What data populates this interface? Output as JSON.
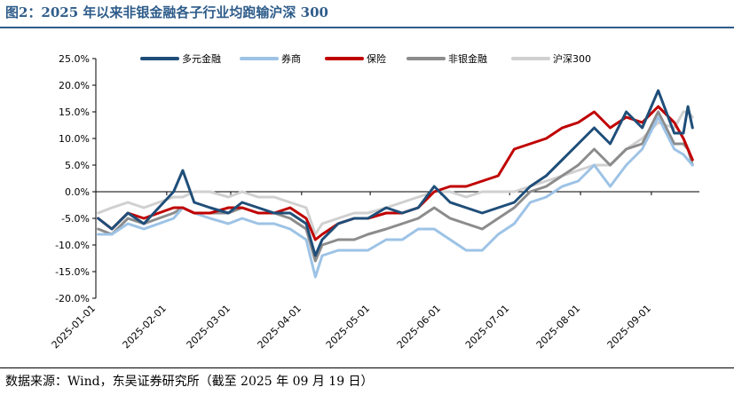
{
  "page": {
    "title": "图2：2025 年以来非银金融各子行业均跑输沪深 300",
    "source": "数据来源：Wind，东吴证券研究所（截至 2025 年 09 月 19 日）"
  },
  "colors": {
    "title": "#2E5C8A",
    "多元金融": "#1F4E79",
    "券商": "#9DC3E6",
    "保险": "#C00000",
    "非银金融": "#8C8C8C",
    "沪深300": "#D0D0D0"
  },
  "chart_data": {
    "type": "line",
    "x": [
      "2025-01-02",
      "2025-01-08",
      "2025-01-15",
      "2025-01-22",
      "2025-02-04",
      "2025-02-08",
      "2025-02-13",
      "2025-02-20",
      "2025-02-28",
      "2025-03-06",
      "2025-03-13",
      "2025-03-20",
      "2025-03-27",
      "2025-04-03",
      "2025-04-07",
      "2025-04-10",
      "2025-04-17",
      "2025-04-24",
      "2025-04-30",
      "2025-05-08",
      "2025-05-15",
      "2025-05-22",
      "2025-05-29",
      "2025-06-05",
      "2025-06-12",
      "2025-06-19",
      "2025-06-26",
      "2025-07-03",
      "2025-07-10",
      "2025-07-17",
      "2025-07-24",
      "2025-07-31",
      "2025-08-07",
      "2025-08-14",
      "2025-08-21",
      "2025-08-28",
      "2025-09-04",
      "2025-09-11",
      "2025-09-15",
      "2025-09-17",
      "2025-09-19"
    ],
    "x_ticks": [
      "2025-01-01",
      "2025-02-01",
      "2025-03-01",
      "2025-04-01",
      "2025-05-01",
      "2025-06-01",
      "2025-07-01",
      "2025-08-01",
      "2025-09-01"
    ],
    "y_ticks": [
      "25.0%",
      "20.0%",
      "15.0%",
      "10.0%",
      "5.0%",
      "0.0%",
      "-5.0%",
      "-10.0%",
      "-15.0%",
      "-20.0%"
    ],
    "ylim": [
      -20,
      25
    ],
    "unit": "%",
    "grid": false,
    "legend_position": "top",
    "series": [
      {
        "name": "多元金融",
        "values": [
          -5,
          -7,
          -4,
          -6,
          0,
          4,
          -2,
          -3,
          -4,
          -2,
          -3,
          -4,
          -4,
          -6,
          -12,
          -9,
          -6,
          -5,
          -5,
          -3,
          -4,
          -3,
          1,
          -2,
          -3,
          -4,
          -3,
          -2,
          1,
          3,
          6,
          9,
          12,
          9,
          15,
          12,
          19,
          11,
          11,
          16,
          12
        ]
      },
      {
        "name": "券商",
        "values": [
          -8,
          -8,
          -6,
          -7,
          -5,
          -3,
          -4,
          -5,
          -6,
          -5,
          -6,
          -6,
          -7,
          -9,
          -16,
          -12,
          -11,
          -11,
          -11,
          -9,
          -9,
          -7,
          -7,
          -9,
          -11,
          -11,
          -8,
          -6,
          -2,
          -1,
          1,
          2,
          5,
          1,
          5,
          8,
          14,
          8,
          7,
          6,
          5
        ]
      },
      {
        "name": "保险",
        "values": [
          -5,
          -7,
          -4,
          -5,
          -3,
          -3,
          -4,
          -4,
          -3,
          -3,
          -4,
          -4,
          -3,
          -5,
          -9,
          -8,
          -6,
          -5,
          -5,
          -4,
          -4,
          -3,
          0,
          1,
          1,
          2,
          3,
          8,
          9,
          10,
          12,
          13,
          15,
          12,
          14,
          13,
          16,
          13,
          10,
          8,
          6
        ]
      },
      {
        "name": "非银金融",
        "values": [
          -7,
          -8,
          -5,
          -6,
          -4,
          -3,
          -4,
          -4,
          -4,
          -3,
          -4,
          -4,
          -5,
          -7,
          -13,
          -10,
          -9,
          -9,
          -8,
          -7,
          -6,
          -5,
          -3,
          -5,
          -6,
          -7,
          -5,
          -3,
          0,
          1,
          3,
          5,
          8,
          5,
          8,
          9,
          15,
          9,
          9,
          8,
          5
        ]
      },
      {
        "name": "沪深300",
        "values": [
          -4,
          -3,
          -2,
          -3,
          -1,
          -1,
          0,
          0,
          -1,
          0,
          -1,
          -1,
          -2,
          -3,
          -8,
          -6,
          -5,
          -4,
          -4,
          -3,
          -2,
          -1,
          0,
          0,
          -1,
          0,
          0,
          0,
          1,
          2,
          3,
          4,
          5,
          5,
          8,
          10,
          13,
          12,
          15,
          15,
          14
        ]
      }
    ]
  }
}
